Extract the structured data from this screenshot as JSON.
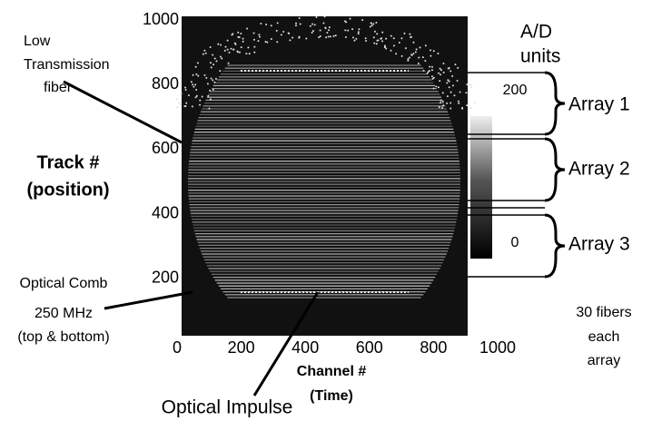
{
  "chart_data": {
    "type": "image",
    "xlabel": [
      "Channel #",
      "(Time)"
    ],
    "ylabel": [
      "Track #",
      "(position)"
    ],
    "xlim": [
      0,
      1000
    ],
    "xticks": [
      0,
      200,
      400,
      600,
      800,
      1000
    ],
    "ylim": [
      0,
      1000
    ],
    "yticks": [
      200,
      400,
      600,
      800,
      1000
    ],
    "colorbar": {
      "label": [
        "A/D",
        "units"
      ],
      "clim": [
        0,
        200
      ],
      "ticks": [
        0,
        200
      ]
    },
    "annotations": {
      "low_transmission": [
        "Low",
        "Transmission",
        "fiber"
      ],
      "optical_comb": [
        "Optical Comb",
        "250 MHz",
        "(top & bottom)"
      ],
      "optical_impulse": "Optical Impulse",
      "arrays": [
        "Array 1",
        "Array 2",
        "Array 3"
      ],
      "fibers_note": [
        "30 fibers",
        "each",
        "array"
      ]
    }
  }
}
